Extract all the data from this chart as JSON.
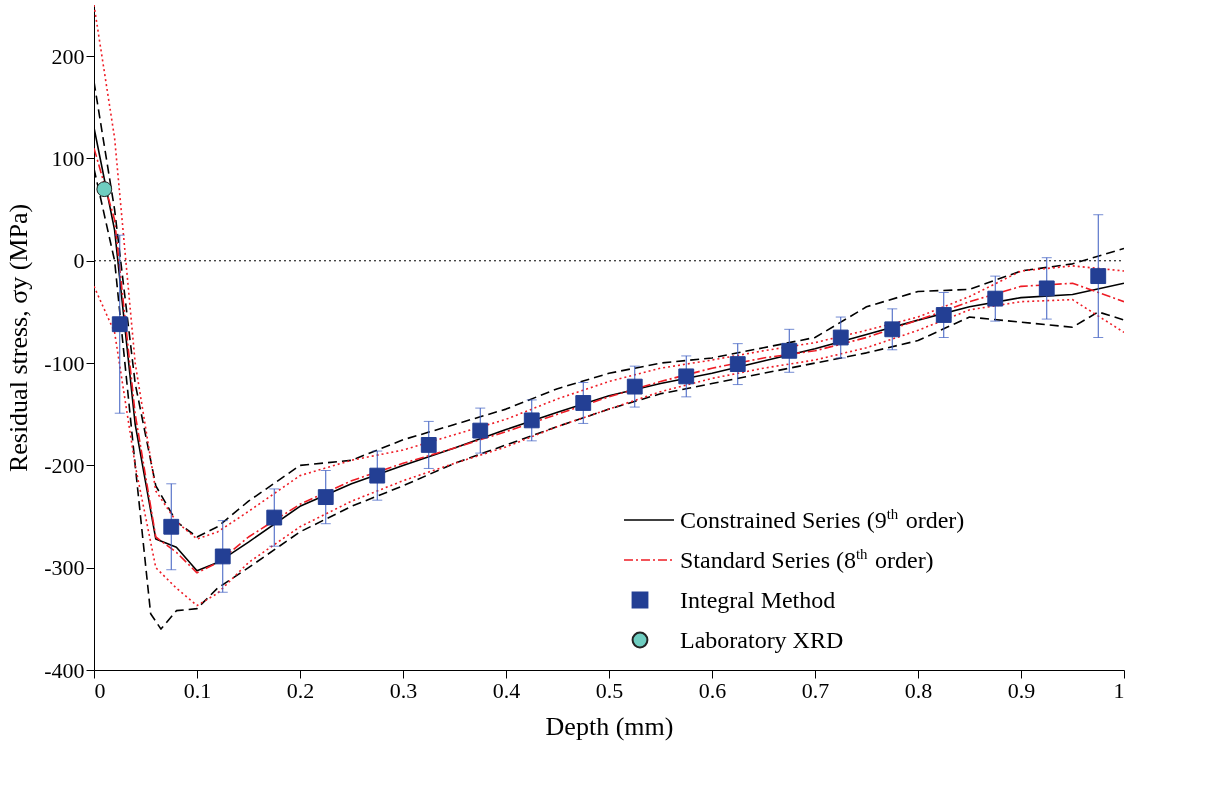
{
  "chart_data": {
    "type": "line",
    "xlabel": "Depth (mm)",
    "ylabel": "Residual stress,  σy  (MPa)",
    "xlim": [
      0,
      1
    ],
    "ylim": [
      -400,
      250
    ],
    "xticks": [
      0,
      0.1,
      0.2,
      0.3,
      0.4,
      0.5,
      0.6,
      0.7,
      0.8,
      0.9,
      1
    ],
    "yticks": [
      -400,
      -300,
      -200,
      -100,
      0,
      100,
      200
    ],
    "grid": false,
    "legend": "bottom right",
    "ref_lines": [
      {
        "axis": "y",
        "value": 0,
        "color": "#000000",
        "line_style": "dotted"
      }
    ],
    "series": [
      {
        "type": "line",
        "line_style": "dashed",
        "color": "#000000",
        "x": [
          0,
          0.02,
          0.04,
          0.06,
          0.08,
          0.1,
          0.12,
          0.15,
          0.2,
          0.25,
          0.3,
          0.35,
          0.4,
          0.45,
          0.5,
          0.55,
          0.6,
          0.65,
          0.7,
          0.75,
          0.8,
          0.85,
          0.9,
          0.95,
          1.0
        ],
        "values": [
          175,
          50,
          -120,
          -220,
          -255,
          -270,
          -260,
          -235,
          -200,
          -195,
          -175,
          -160,
          -145,
          -125,
          -110,
          -100,
          -95,
          -85,
          -75,
          -45,
          -30,
          -28,
          -10,
          -3,
          12
        ]
      },
      {
        "type": "line",
        "line_style": "dashed",
        "color": "#000000",
        "x": [
          0,
          0.02,
          0.04,
          0.055,
          0.065,
          0.08,
          0.1,
          0.12,
          0.15,
          0.2,
          0.25,
          0.3,
          0.35,
          0.4,
          0.45,
          0.5,
          0.55,
          0.6,
          0.65,
          0.7,
          0.75,
          0.8,
          0.85,
          0.9,
          0.95,
          0.975,
          1.0
        ],
        "values": [
          90,
          0,
          -200,
          -345,
          -360,
          -342,
          -340,
          -320,
          -300,
          -265,
          -240,
          -220,
          -198,
          -180,
          -162,
          -145,
          -130,
          -120,
          -110,
          -100,
          -90,
          -78,
          -55,
          -60,
          -65,
          -50,
          -58
        ]
      },
      {
        "type": "line",
        "line_style": "dotted",
        "color": "#ee1c25",
        "x": [
          0,
          0.02,
          0.04,
          0.06,
          0.08,
          0.1,
          0.12,
          0.15,
          0.2,
          0.25,
          0.3,
          0.35,
          0.4,
          0.45,
          0.5,
          0.55,
          0.6,
          0.65,
          0.7,
          0.75,
          0.8,
          0.85,
          0.9,
          0.95,
          1.0
        ],
        "values": [
          250,
          120,
          -100,
          -225,
          -255,
          -272,
          -265,
          -245,
          -210,
          -195,
          -185,
          -170,
          -155,
          -135,
          -118,
          -105,
          -97,
          -88,
          -80,
          -68,
          -55,
          -35,
          -10,
          -5,
          -10
        ]
      },
      {
        "type": "line",
        "line_style": "dotted",
        "color": "#ee1c25",
        "x": [
          0,
          0.02,
          0.04,
          0.06,
          0.08,
          0.1,
          0.12,
          0.15,
          0.2,
          0.25,
          0.3,
          0.35,
          0.4,
          0.45,
          0.5,
          0.55,
          0.6,
          0.65,
          0.7,
          0.75,
          0.8,
          0.85,
          0.9,
          0.95,
          1.0
        ],
        "values": [
          -25,
          -70,
          -200,
          -300,
          -320,
          -337,
          -325,
          -295,
          -260,
          -235,
          -215,
          -198,
          -182,
          -162,
          -145,
          -128,
          -115,
          -105,
          -97,
          -85,
          -68,
          -48,
          -40,
          -38,
          -70
        ]
      },
      {
        "type": "line",
        "name": "Constrained Series (9$^{th}$ order)",
        "line_style": "solid",
        "color": "#000000",
        "x": [
          0,
          0.02,
          0.04,
          0.06,
          0.08,
          0.1,
          0.12,
          0.15,
          0.2,
          0.25,
          0.3,
          0.35,
          0.4,
          0.45,
          0.5,
          0.55,
          0.6,
          0.65,
          0.7,
          0.75,
          0.8,
          0.85,
          0.9,
          0.95,
          1.0
        ],
        "values": [
          130,
          30,
          -160,
          -272,
          -280,
          -303,
          -295,
          -275,
          -240,
          -218,
          -200,
          -183,
          -165,
          -148,
          -132,
          -120,
          -110,
          -98,
          -86,
          -72,
          -58,
          -45,
          -36,
          -33,
          -22
        ]
      },
      {
        "type": "line",
        "name": "Standard Series (8$^{th}$ order)",
        "line_style": "dashdot",
        "color": "#ee1c25",
        "x": [
          0,
          0.02,
          0.04,
          0.06,
          0.08,
          0.1,
          0.12,
          0.15,
          0.2,
          0.25,
          0.3,
          0.35,
          0.4,
          0.45,
          0.5,
          0.55,
          0.6,
          0.65,
          0.7,
          0.75,
          0.8,
          0.85,
          0.9,
          0.95,
          1.0
        ],
        "values": [
          110,
          40,
          -150,
          -270,
          -285,
          -305,
          -295,
          -270,
          -238,
          -215,
          -198,
          -183,
          -167,
          -150,
          -133,
          -118,
          -105,
          -95,
          -88,
          -75,
          -58,
          -40,
          -25,
          -22,
          -40
        ]
      },
      {
        "type": "scatter",
        "name": "Integral Method",
        "marker": "square",
        "color": "#233f94",
        "x": [
          0.025,
          0.075,
          0.125,
          0.175,
          0.225,
          0.275,
          0.325,
          0.375,
          0.425,
          0.475,
          0.525,
          0.575,
          0.625,
          0.675,
          0.725,
          0.775,
          0.825,
          0.875,
          0.925,
          0.975
        ],
        "values": [
          -62,
          -260,
          -289,
          -251,
          -231,
          -210,
          -180,
          -166,
          -156,
          -139,
          -123,
          -113,
          -101,
          -88,
          -75,
          -67,
          -53,
          -37,
          -27,
          -15
        ],
        "errors": [
          87,
          42,
          35,
          28,
          26,
          24,
          23,
          22,
          20,
          20,
          20,
          20,
          20,
          21,
          20,
          20,
          22,
          22,
          30,
          60
        ]
      },
      {
        "type": "scatter",
        "name": "Laboratory XRD",
        "marker": "circle",
        "color": "#6fcdc0",
        "x": [
          0.01
        ],
        "values": [
          70
        ]
      }
    ]
  }
}
